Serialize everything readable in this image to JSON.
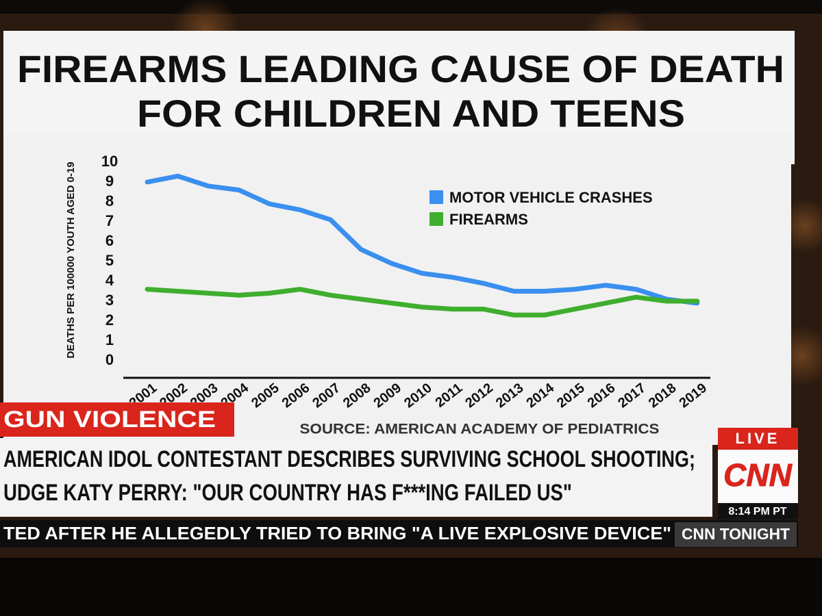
{
  "chart_data": {
    "type": "line",
    "title": [
      "FIREARMS LEADING CAUSE OF DEATH",
      "FOR CHILDREN AND TEENS"
    ],
    "y_label": "DEATHS PER 100000 YOUTH AGED 0-19",
    "source": "SOURCE: AMERICAN ACADEMY OF PEDIATRICS",
    "categories": [
      "2001",
      "2002",
      "2003",
      "2004",
      "2005",
      "2006",
      "2007",
      "2008",
      "2009",
      "2010",
      "2011",
      "2012",
      "2013",
      "2014",
      "2015",
      "2016",
      "2017",
      "2018",
      "2019"
    ],
    "series": [
      {
        "name": "MOTOR VEHICLE CRASHES",
        "color": "#3a8fef",
        "values": [
          9.0,
          9.3,
          8.8,
          8.6,
          7.9,
          7.6,
          7.1,
          5.6,
          4.9,
          4.4,
          4.2,
          3.9,
          3.5,
          3.5,
          3.6,
          3.8,
          3.6,
          3.1,
          2.9
        ]
      },
      {
        "name": "FIREARMS",
        "color": "#3fae2e",
        "values": [
          3.6,
          3.5,
          3.4,
          3.3,
          3.4,
          3.6,
          3.3,
          3.1,
          2.9,
          2.7,
          2.6,
          2.6,
          2.3,
          2.3,
          2.6,
          2.9,
          3.2,
          3.0,
          3.0
        ]
      }
    ],
    "ylim": [
      0,
      10
    ],
    "yticks": [
      0,
      1,
      2,
      3,
      4,
      5,
      6,
      7,
      8,
      9,
      10
    ],
    "grid": false,
    "legend": "top-right"
  },
  "chyron": {
    "tag": "GUN VIOLENCE",
    "headline": [
      "AMERICAN IDOL CONTESTANT DESCRIBES SURVIVING SCHOOL SHOOTING;",
      "UDGE KATY PERRY: \"OUR COUNTRY HAS F***ING FAILED US\""
    ],
    "ticker": "TED AFTER HE ALLEGEDLY TRIED TO BRING \"A LIVE EXPLOSIVE DEVICE\" I",
    "show": "CNN TONIGHT",
    "live": "LIVE",
    "logo": "CNN",
    "time": "8:14 PM PT"
  }
}
